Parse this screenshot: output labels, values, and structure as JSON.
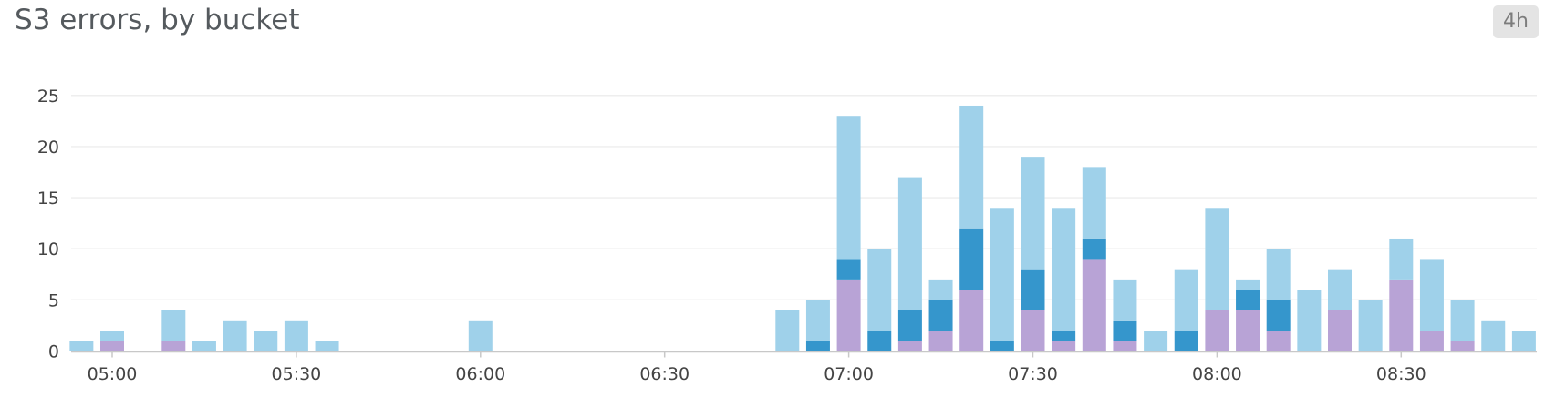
{
  "widget": {
    "title": "S3 errors, by bucket",
    "timeframe": "4h"
  },
  "colors": {
    "bucket_a": "#9fd1ea",
    "bucket_b": "#3596cc",
    "bucket_c": "#b8a3d6",
    "grid": "#eeeeee",
    "axis": "#c8c8c8"
  },
  "chart_data": {
    "type": "bar",
    "stacked": true,
    "title": "S3 errors, by bucket",
    "xlabel": "",
    "ylabel": "",
    "ylim": [
      0,
      27
    ],
    "yticks": [
      0,
      5,
      10,
      15,
      20,
      25
    ],
    "xticks": [
      "05:00",
      "05:30",
      "06:00",
      "06:30",
      "07:00",
      "07:30",
      "08:00",
      "08:30"
    ],
    "grid": true,
    "legend": "none",
    "bar_interval_minutes": 5,
    "bars": [
      {
        "t": "04:55",
        "c": 0,
        "b": 0,
        "a": 1
      },
      {
        "t": "05:00",
        "c": 1,
        "b": 0,
        "a": 1
      },
      {
        "t": "05:10",
        "c": 1,
        "b": 0,
        "a": 3
      },
      {
        "t": "05:15",
        "c": 0,
        "b": 0,
        "a": 1
      },
      {
        "t": "05:20",
        "c": 0,
        "b": 0,
        "a": 3
      },
      {
        "t": "05:25",
        "c": 0,
        "b": 0,
        "a": 2
      },
      {
        "t": "05:30",
        "c": 0,
        "b": 0,
        "a": 3
      },
      {
        "t": "05:35",
        "c": 0,
        "b": 0,
        "a": 1
      },
      {
        "t": "06:00",
        "c": 0,
        "b": 0,
        "a": 3
      },
      {
        "t": "06:50",
        "c": 0,
        "b": 0,
        "a": 4
      },
      {
        "t": "06:55",
        "c": 0,
        "b": 1,
        "a": 4
      },
      {
        "t": "07:00",
        "c": 7,
        "b": 2,
        "a": 14
      },
      {
        "t": "07:05",
        "c": 0,
        "b": 2,
        "a": 8
      },
      {
        "t": "07:10",
        "c": 1,
        "b": 3,
        "a": 13
      },
      {
        "t": "07:15",
        "c": 2,
        "b": 3,
        "a": 2
      },
      {
        "t": "07:20",
        "c": 6,
        "b": 6,
        "a": 12
      },
      {
        "t": "07:25",
        "c": 0,
        "b": 1,
        "a": 13
      },
      {
        "t": "07:30",
        "c": 4,
        "b": 4,
        "a": 11
      },
      {
        "t": "07:35",
        "c": 1,
        "b": 1,
        "a": 12
      },
      {
        "t": "07:40",
        "c": 9,
        "b": 2,
        "a": 7
      },
      {
        "t": "07:45",
        "c": 1,
        "b": 2,
        "a": 4
      },
      {
        "t": "07:50",
        "c": 0,
        "b": 0,
        "a": 2
      },
      {
        "t": "07:55",
        "c": 0,
        "b": 2,
        "a": 6
      },
      {
        "t": "08:00",
        "c": 4,
        "b": 0,
        "a": 10
      },
      {
        "t": "08:05",
        "c": 4,
        "b": 2,
        "a": 1
      },
      {
        "t": "08:10",
        "c": 2,
        "b": 3,
        "a": 5
      },
      {
        "t": "08:15",
        "c": 0,
        "b": 0,
        "a": 6
      },
      {
        "t": "08:20",
        "c": 4,
        "b": 0,
        "a": 4
      },
      {
        "t": "08:25",
        "c": 0,
        "b": 0,
        "a": 5
      },
      {
        "t": "08:30",
        "c": 7,
        "b": 0,
        "a": 4
      },
      {
        "t": "08:35",
        "c": 2,
        "b": 0,
        "a": 7
      },
      {
        "t": "08:40",
        "c": 1,
        "b": 0,
        "a": 4
      },
      {
        "t": "08:45",
        "c": 0,
        "b": 0,
        "a": 3
      },
      {
        "t": "08:50",
        "c": 0,
        "b": 0,
        "a": 2
      }
    ]
  }
}
